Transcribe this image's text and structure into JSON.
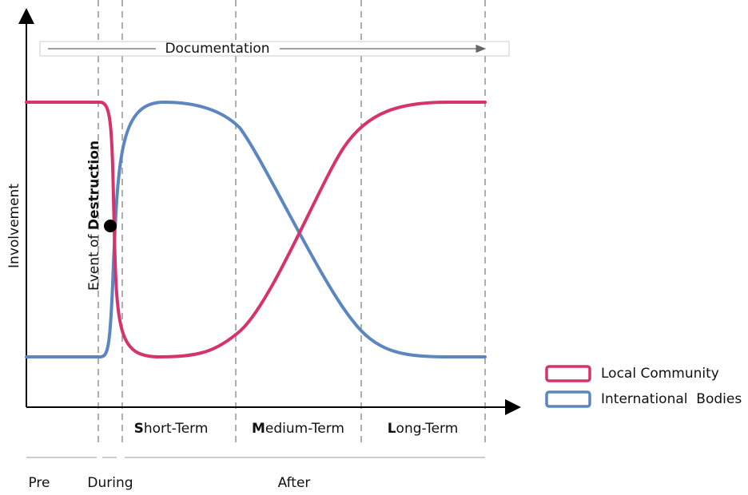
{
  "header": {
    "banner": "Documentation",
    "y_axis_label": "Involvement"
  },
  "event": {
    "prefix": "Event of ",
    "emphasis": "Destruction"
  },
  "phases": [
    {
      "initial": "S",
      "rest": "hort-Term"
    },
    {
      "initial": "M",
      "rest": "edium-Term"
    },
    {
      "initial": "L",
      "rest": "ong-Term"
    }
  ],
  "periods": [
    "Pre",
    "During",
    "After"
  ],
  "legend": [
    {
      "name": "Local Community",
      "color": "#d6336c"
    },
    {
      "name": "International  Bodies",
      "color": "#5b86c0"
    }
  ]
}
